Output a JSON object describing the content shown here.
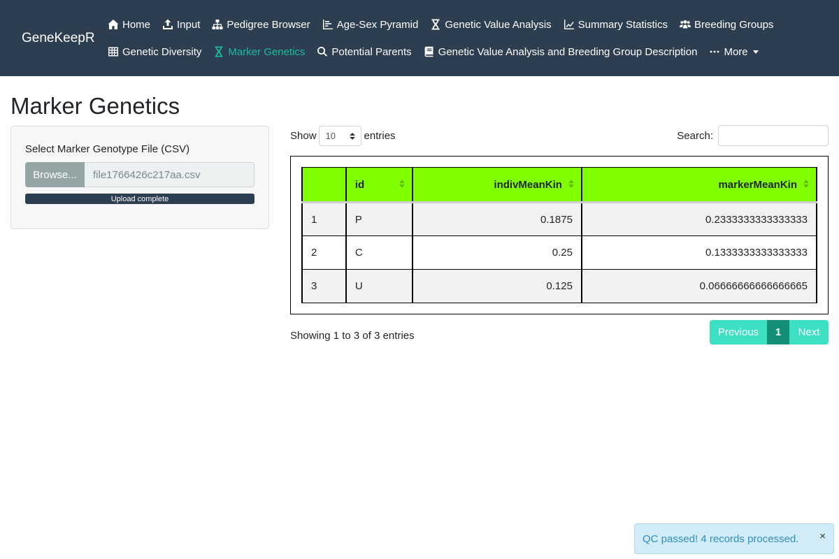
{
  "navbar": {
    "brand": "GeneKeepR",
    "row1": [
      {
        "label": "Home",
        "icon": "home-icon"
      },
      {
        "label": "Input",
        "icon": "upload-icon"
      },
      {
        "label": "Pedigree Browser",
        "icon": "sitemap-icon"
      },
      {
        "label": "Age-Sex Pyramid",
        "icon": "bar-chart-icon"
      },
      {
        "label": "Genetic Value Analysis",
        "icon": "hourglass-icon"
      },
      {
        "label": "Summary Statistics",
        "icon": "line-chart-icon"
      },
      {
        "label": "Breeding Groups",
        "icon": "users-icon"
      }
    ],
    "row2": [
      {
        "label": "Genetic Diversity",
        "icon": "table-icon"
      },
      {
        "label": "Marker Genetics",
        "icon": "hourglass-icon",
        "active": true
      },
      {
        "label": "Potential Parents",
        "icon": "search-icon"
      },
      {
        "label": "Genetic Value Analysis and Breeding Group Description",
        "icon": "book-icon"
      },
      {
        "label": "More",
        "icon": "ellipsis-icon"
      }
    ],
    "colors": {
      "background": "#2c3e50",
      "active": "#18bc9c"
    }
  },
  "page": {
    "title": "Marker Genetics"
  },
  "sidebar": {
    "file_label": "Select Marker Genotype File (CSV)",
    "browse_label": "Browse...",
    "file_name": "file1766426c217aa.csv",
    "progress_label": "Upload complete",
    "progress": 1.0
  },
  "table_controls": {
    "show_label": "Show",
    "length_value": "10",
    "entries_label": "entries",
    "search_label": "Search:",
    "search_value": ""
  },
  "table": {
    "headers": [
      "",
      "id",
      "indivMeanKin",
      "markerMeanKin"
    ],
    "rows": [
      [
        "1",
        "P",
        "0.1875",
        "0.2333333333333333"
      ],
      [
        "2",
        "C",
        "0.25",
        "0.1333333333333333"
      ],
      [
        "3",
        "U",
        "0.125",
        "0.06666666666666665"
      ]
    ],
    "header_color": "#7fff00"
  },
  "footer": {
    "info": "Showing 1 to 3 of 3 entries",
    "previous": "Previous",
    "current_page": "1",
    "next": "Next"
  },
  "toast": {
    "message": "QC passed! 4 records processed.",
    "close": "×"
  }
}
